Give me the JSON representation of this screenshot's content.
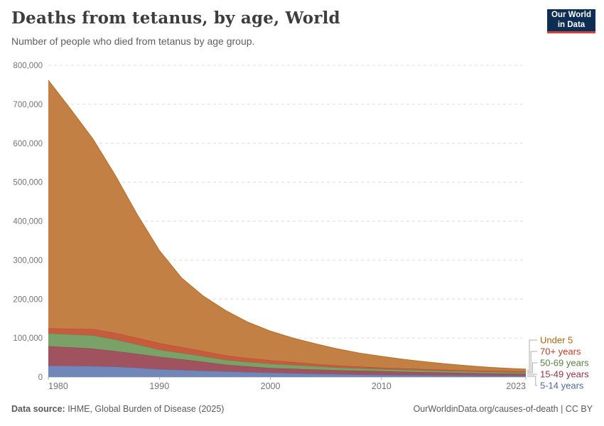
{
  "header": {
    "title": "Deaths from tetanus, by age, World",
    "subtitle": "Number of people who died from tetanus by age group.",
    "logo": {
      "line1": "Our World",
      "line2": "in Data",
      "bg_color": "#0d2e52",
      "accent_color": "#d7403a"
    }
  },
  "footer": {
    "source_label": "Data source:",
    "source_text": " IHME, Global Burden of Disease (2025)",
    "right_text": "OurWorldinData.org/causes-of-death | CC BY"
  },
  "chart_data": {
    "type": "area",
    "stacked": true,
    "title": "Deaths from tetanus, by age, World",
    "subtitle": "Number of people who died from tetanus by age group.",
    "xlabel": "",
    "ylabel": "",
    "xlim": [
      1980,
      2023
    ],
    "ylim": [
      0,
      800000
    ],
    "grid": "horizontal-dashed",
    "legend_position": "right",
    "x": [
      1980,
      1982,
      1984,
      1986,
      1988,
      1990,
      1992,
      1994,
      1996,
      1998,
      2000,
      2002,
      2004,
      2006,
      2008,
      2010,
      2012,
      2014,
      2016,
      2018,
      2020,
      2022,
      2023
    ],
    "x_ticks": [
      1980,
      1990,
      2000,
      2010,
      2023
    ],
    "y_ticks": [
      0,
      100000,
      200000,
      300000,
      400000,
      500000,
      600000,
      700000,
      800000
    ],
    "series": [
      {
        "name": "5-14 years",
        "slug": "5-14-years",
        "color": "#4C6A9C",
        "fill": "#7187B9",
        "values": [
          29000,
          28500,
          28000,
          26500,
          23500,
          20000,
          18000,
          16000,
          14200,
          12500,
          11000,
          9800,
          8600,
          7400,
          6400,
          5500,
          5000,
          4600,
          4200,
          3800,
          3400,
          3100,
          3000
        ]
      },
      {
        "name": "15-49 years",
        "slug": "15-49-years",
        "color": "#953343",
        "fill": "#A0535F",
        "values": [
          50000,
          47500,
          45000,
          40000,
          36000,
          32000,
          27500,
          23000,
          17500,
          14500,
          12000,
          11400,
          10800,
          10200,
          9800,
          9500,
          8700,
          7800,
          7100,
          6500,
          6000,
          5600,
          5400
        ]
      },
      {
        "name": "50-69 years",
        "slug": "50-69-years",
        "color": "#588144",
        "fill": "#7AA168",
        "values": [
          33000,
          33500,
          34000,
          30000,
          24000,
          18000,
          16000,
          14000,
          12200,
          11500,
          11000,
          9600,
          8200,
          7000,
          6200,
          5500,
          5100,
          4700,
          4400,
          4100,
          3900,
          3750,
          3700
        ]
      },
      {
        "name": "70+ years",
        "slug": "70-plus-years",
        "color": "#BF3B22",
        "fill": "#C75B3E",
        "values": [
          13000,
          14500,
          16000,
          17000,
          17000,
          17000,
          15000,
          13000,
          11400,
          10100,
          9000,
          7600,
          6200,
          5000,
          4200,
          3600,
          3200,
          2900,
          2700,
          2500,
          2400,
          2300,
          2300
        ]
      },
      {
        "name": "Under 5",
        "slug": "under-5",
        "color": "#B16214",
        "fill": "#C28044",
        "values": [
          637000,
          564000,
          489000,
          406000,
          317000,
          238000,
          178000,
          141000,
          115000,
          92000,
          75000,
          62000,
          52000,
          43000,
          35000,
          29000,
          23500,
          19000,
          15000,
          11600,
          8800,
          6750,
          5900
        ]
      }
    ],
    "style": {
      "grid_color": "#DCDCDC",
      "axis_color": "#B3B3B3",
      "tick_label_color": "#737373",
      "connector_color": "#AFAFAF"
    }
  }
}
